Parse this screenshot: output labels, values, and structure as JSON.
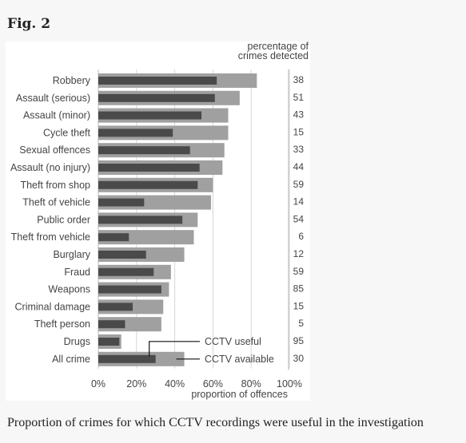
{
  "figure_label": "Fig. 2",
  "caption": "Proportion of crimes for which CCTV recordings were useful in the investigation",
  "chart_data": {
    "type": "bar",
    "orientation": "horizontal",
    "categories": [
      "Robbery",
      "Assault (serious)",
      "Assault (minor)",
      "Cycle theft",
      "Sexual offences",
      "Assault (no injury)",
      "Theft from shop",
      "Theft of vehicle",
      "Public order",
      "Theft from vehicle",
      "Burglary",
      "Fraud",
      "Weapons",
      "Criminal damage",
      "Theft person",
      "Drugs",
      "All crime"
    ],
    "series": [
      {
        "name": "CCTV available",
        "color": "#a0a0a0",
        "values": [
          83,
          74,
          68,
          68,
          66,
          65,
          60,
          59,
          52,
          50,
          45,
          38,
          37,
          34,
          33,
          12,
          45
        ]
      },
      {
        "name": "CCTV useful",
        "color": "#4a4a4a",
        "values": [
          62,
          61,
          54,
          39,
          48,
          53,
          52,
          24,
          44,
          16,
          25,
          29,
          33,
          18,
          14,
          11,
          30
        ]
      }
    ],
    "detected_header": [
      "percentage of",
      "crimes detected"
    ],
    "detected_values": [
      "38",
      "51",
      "43",
      "15",
      "33",
      "44",
      "59",
      "14",
      "54",
      "6",
      "12",
      "59",
      "85",
      "15",
      "5",
      "95",
      "30"
    ],
    "x_ticks": [
      "0%",
      "20%",
      "40%",
      "60%",
      "80%",
      "100%"
    ],
    "x_tick_values": [
      0,
      20,
      40,
      60,
      80,
      100
    ],
    "xlabel": "proportion of offences",
    "xlim": [
      0,
      100
    ],
    "grid": true,
    "legend_placement": "bottom-right, callouts pointing to All crime bars"
  }
}
